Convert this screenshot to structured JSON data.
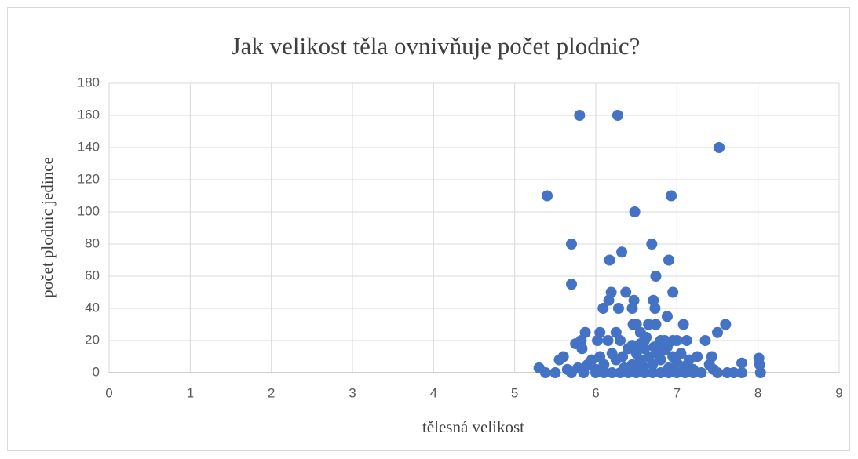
{
  "chart_data": {
    "type": "scatter",
    "title": "Jak velikost těla ovnivňuje počet plodnic?",
    "x_label": "tělesná velikost",
    "y_label": "počet plodnic jedince",
    "color": "#4472c4",
    "grid": true,
    "xlim": [
      0,
      9
    ],
    "xticks": [
      0,
      1,
      2,
      3,
      4,
      5,
      6,
      7,
      8,
      9
    ],
    "ylim": [
      0,
      180
    ],
    "yticks": [
      0,
      20,
      40,
      60,
      80,
      100,
      120,
      140,
      160,
      180
    ],
    "x": [
      5.8,
      6.27,
      7.52,
      5.4,
      6.93,
      6.48,
      5.7,
      6.32,
      6.17,
      6.69,
      6.9,
      6.74,
      5.7,
      6.95,
      6.19,
      6.37,
      6.47,
      6.16,
      6.71,
      6.09,
      6.28,
      6.45,
      6.73,
      6.88,
      6.46,
      6.5,
      6.65,
      6.74,
      7.08,
      7.6,
      7.5,
      5.87,
      6.05,
      6.25,
      6.55,
      6.8,
      7.35,
      7.12,
      5.75,
      5.83,
      5.82,
      6.02,
      6.15,
      6.3,
      6.6,
      6.85,
      6.95,
      7.0,
      8.01,
      8.02,
      7.8,
      8.03,
      7.8,
      7.7,
      7.62,
      5.3,
      5.38,
      5.5,
      5.55,
      5.6,
      5.65,
      5.7,
      5.78,
      5.9,
      5.95,
      6.0,
      6.05,
      6.1,
      6.2,
      6.25,
      6.33,
      6.4,
      6.45,
      6.5,
      6.55,
      6.6,
      6.65,
      6.7,
      6.75,
      6.8,
      6.85,
      6.9,
      6.95,
      7.0,
      7.05,
      7.1,
      7.15,
      7.2,
      7.25,
      7.3,
      7.4,
      7.43,
      7.45,
      7.5,
      6.0,
      6.2,
      6.4,
      6.6,
      6.8,
      7.0,
      7.2,
      5.85,
      6.1,
      6.3,
      6.5,
      6.7,
      6.9,
      7.1,
      6.55,
      6.62,
      6.72,
      6.78,
      6.88,
      6.35,
      6.45,
      6.58
    ],
    "values": [
      160,
      160,
      140,
      110,
      110,
      100,
      80,
      75,
      70,
      80,
      70,
      60,
      55,
      50,
      50,
      50,
      45,
      45,
      45,
      40,
      40,
      40,
      40,
      35,
      30,
      30,
      30,
      30,
      30,
      30,
      25,
      25,
      25,
      25,
      25,
      20,
      20,
      20,
      18,
      15,
      20,
      20,
      20,
      20,
      20,
      20,
      20,
      20,
      9,
      5,
      6,
      0,
      0,
      0,
      0,
      3,
      0,
      0,
      8,
      10,
      2,
      0,
      3,
      5,
      8,
      2,
      10,
      5,
      12,
      8,
      10,
      15,
      5,
      12,
      8,
      15,
      10,
      5,
      12,
      8,
      14,
      3,
      10,
      6,
      12,
      4,
      8,
      2,
      10,
      0,
      5,
      10,
      2,
      0,
      0,
      0,
      0,
      0,
      0,
      0,
      0,
      0,
      0,
      0,
      0,
      0,
      0,
      0,
      18,
      22,
      16,
      18,
      16,
      3,
      17,
      4
    ]
  }
}
